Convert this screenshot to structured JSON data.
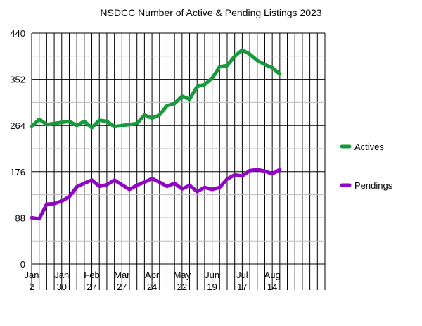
{
  "chart_data": {
    "type": "line",
    "title": "NSDCC Number of Active & Pending Listings 2023",
    "xlabel": "",
    "ylabel": "",
    "ylim": [
      0,
      440
    ],
    "y_ticks": [
      0,
      88,
      176,
      264,
      352,
      440
    ],
    "y_tick_labels": [
      "0",
      "88",
      "176",
      "264",
      "352",
      "440"
    ],
    "x_tick_labels": [
      {
        "month": "Jan",
        "day": "2"
      },
      {
        "month": "Jan",
        "day": "30"
      },
      {
        "month": "Feb",
        "day": "27"
      },
      {
        "month": "Mar",
        "day": "27"
      },
      {
        "month": "Apr",
        "day": "24"
      },
      {
        "month": "May",
        "day": "22"
      },
      {
        "month": "Jun",
        "day": "19"
      },
      {
        "month": "Jul",
        "day": "17"
      },
      {
        "month": "Aug",
        "day": "14"
      }
    ],
    "x_tick_every_weeks": 4,
    "grid": true,
    "legend": "right",
    "x": [
      "Jan 2",
      "Jan 9",
      "Jan 16",
      "Jan 23",
      "Jan 30",
      "Feb 6",
      "Feb 13",
      "Feb 20",
      "Feb 27",
      "Mar 6",
      "Mar 13",
      "Mar 20",
      "Mar 27",
      "Apr 3",
      "Apr 10",
      "Apr 17",
      "Apr 24",
      "May 1",
      "May 8",
      "May 15",
      "May 22",
      "May 29",
      "Jun 5",
      "Jun 12",
      "Jun 19",
      "Jun 26",
      "Jul 3",
      "Jul 10",
      "Jul 17",
      "Jul 24",
      "Jul 31",
      "Aug 7",
      "Aug 14",
      "Aug 21"
    ],
    "series": [
      {
        "name": "Actives",
        "color": "#169a3c",
        "values": [
          262,
          276,
          266,
          268,
          270,
          272,
          264,
          272,
          260,
          274,
          272,
          262,
          264,
          266,
          268,
          284,
          278,
          284,
          302,
          306,
          320,
          314,
          338,
          342,
          354,
          376,
          378,
          396,
          408,
          400,
          388,
          380,
          374,
          362
        ]
      },
      {
        "name": "Pendings",
        "color": "#9006c4",
        "values": [
          88,
          86,
          114,
          115,
          120,
          128,
          147,
          154,
          160,
          148,
          151,
          160,
          151,
          142,
          150,
          156,
          163,
          156,
          148,
          154,
          143,
          150,
          138,
          146,
          142,
          146,
          162,
          170,
          168,
          178,
          180,
          177,
          172,
          180
        ]
      }
    ]
  }
}
